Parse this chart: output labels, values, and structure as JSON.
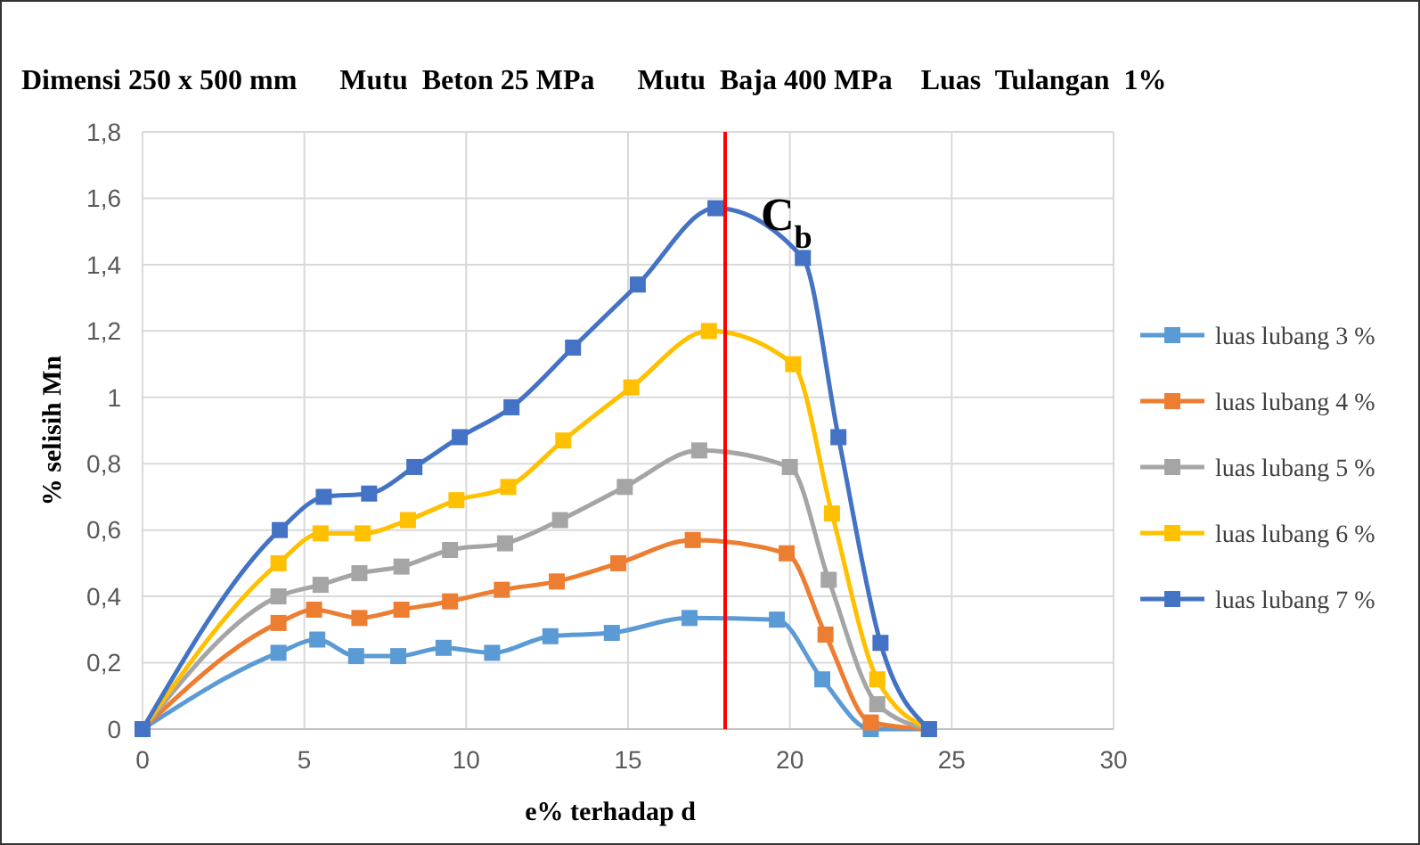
{
  "chart_data": {
    "type": "line",
    "title": "Dimensi 250 x 500 mm      Mutu  Beton 25 MPa      Mutu  Baja 400 MPa    Luas  Tulangan  1%",
    "xlabel": "e% terhadap d",
    "ylabel": "% selisih Mn",
    "xlim": [
      0,
      30
    ],
    "xticks": [
      0,
      5,
      10,
      15,
      20,
      25,
      30
    ],
    "ylim": [
      0,
      1.8
    ],
    "yticks": [
      {
        "value": 0,
        "label": "0"
      },
      {
        "value": 0.2,
        "label": "0,2"
      },
      {
        "value": 0.4,
        "label": "0,4"
      },
      {
        "value": 0.6,
        "label": "0,6"
      },
      {
        "value": 0.8,
        "label": "0,8"
      },
      {
        "value": 1,
        "label": "1"
      },
      {
        "value": 1.2,
        "label": "1,2"
      },
      {
        "value": 1.4,
        "label": "1,4"
      },
      {
        "value": 1.6,
        "label": "1,6"
      },
      {
        "value": 1.8,
        "label": "1,8"
      }
    ],
    "grid": true,
    "legend": "right",
    "marker": "square",
    "line_style": "solid",
    "series": [
      {
        "name": "luas lubang 3 %",
        "color": "#5b9bd5",
        "x": [
          0,
          4.2,
          5.4,
          6.6,
          7.9,
          9.3,
          10.8,
          12.6,
          14.5,
          16.9,
          19.6,
          21.0,
          22.5,
          24.3
        ],
        "values": [
          0,
          0.23,
          0.27,
          0.22,
          0.22,
          0.245,
          0.23,
          0.28,
          0.29,
          0.335,
          0.33,
          0.15,
          0,
          0
        ]
      },
      {
        "name": "luas lubang 4 %",
        "color": "#ed7d31",
        "x": [
          0,
          4.2,
          5.3,
          6.7,
          8.0,
          9.5,
          11.1,
          12.8,
          14.7,
          17.0,
          19.9,
          21.1,
          22.5,
          24.3
        ],
        "values": [
          0,
          0.32,
          0.36,
          0.335,
          0.36,
          0.385,
          0.42,
          0.445,
          0.5,
          0.57,
          0.53,
          0.285,
          0.02,
          0
        ]
      },
      {
        "name": "luas lubang 5 %",
        "color": "#a5a5a5",
        "x": [
          0,
          4.2,
          5.5,
          6.7,
          8.0,
          9.5,
          11.2,
          12.9,
          14.9,
          17.2,
          20.0,
          21.2,
          22.7,
          24.3
        ],
        "values": [
          0,
          0.4,
          0.435,
          0.47,
          0.49,
          0.54,
          0.56,
          0.63,
          0.73,
          0.84,
          0.79,
          0.45,
          0.075,
          0
        ]
      },
      {
        "name": "luas lubang 6 %",
        "color": "#ffc000",
        "x": [
          0,
          4.2,
          5.5,
          6.8,
          8.2,
          9.7,
          11.3,
          13.0,
          15.1,
          17.5,
          20.1,
          21.3,
          22.7,
          24.3
        ],
        "values": [
          0,
          0.5,
          0.59,
          0.59,
          0.63,
          0.69,
          0.73,
          0.87,
          1.03,
          1.2,
          1.1,
          0.65,
          0.15,
          0
        ]
      },
      {
        "name": "luas lubang 7 %",
        "color": "#4472c4",
        "x": [
          0,
          4.24,
          5.6,
          7.0,
          8.4,
          9.8,
          11.4,
          13.3,
          15.3,
          17.7,
          20.4,
          21.5,
          22.8,
          24.3
        ],
        "values": [
          0,
          0.6,
          0.7,
          0.71,
          0.79,
          0.88,
          0.97,
          1.15,
          1.34,
          1.57,
          1.42,
          0.88,
          0.26,
          0
        ]
      }
    ],
    "ref_lines": [
      {
        "axis": "x",
        "value": 18,
        "label": "C$_{b}$",
        "color": "#ff0000",
        "line_style": "solid"
      }
    ]
  }
}
